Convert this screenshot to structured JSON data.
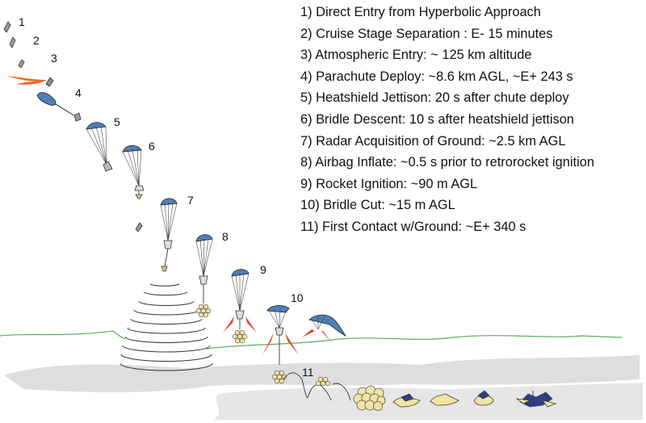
{
  "step_numbers": [
    "1",
    "2",
    "3",
    "4",
    "5",
    "6",
    "7",
    "8",
    "9",
    "10",
    "11"
  ],
  "legend": [
    "1) Direct Entry from Hyperbolic Approach",
    "2) Cruise Stage Separation : E- 15 minutes",
    "3) Atmospheric Entry: ~ 125 km altitude",
    "4) Parachute Deploy: ~8.6 km AGL, ~E+ 243 s",
    "5) Heatshield Jettison: 20 s after chute deploy",
    "6) Bridle Descent: 10 s after heatshield jettison",
    "7) Radar Acquisition of Ground: ~2.5 km AGL",
    "8) Airbag Inflate: ~0.5 s prior to retrorocket ignition",
    "9) Rocket Ignition: ~90 m AGL",
    "10) Bridle Cut: ~15 m AGL",
    "11) First Contact w/Ground: ~E+ 340 s"
  ],
  "colors": {
    "parachute_blue": "#4f7fb8",
    "entry_plasma": "#f26522",
    "rocket_flame": "#e8402a",
    "airbag": "#f2e4a4",
    "ground_line": "#5cae5c",
    "ground_shadow": "#dcdcdc",
    "radar_rings": "#333333"
  }
}
